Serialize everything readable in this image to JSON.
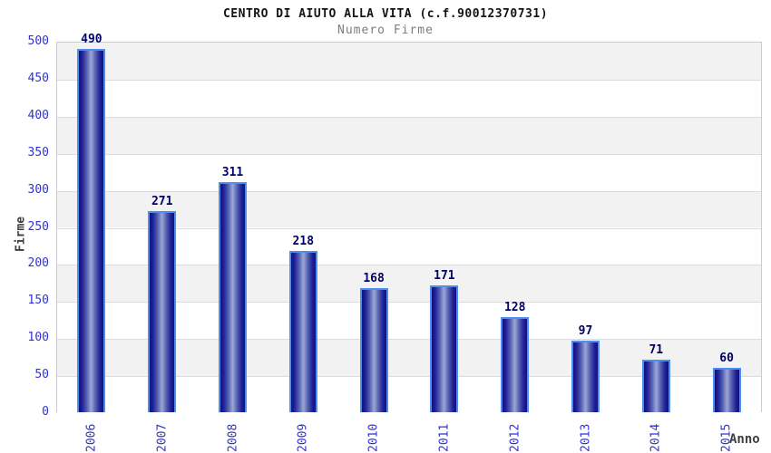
{
  "chart": {
    "title": "CENTRO DI AIUTO ALLA VITA (c.f.90012370731)",
    "subtitle": "Numero Firme",
    "ylabel": "Firme",
    "xlabel": "Anno"
  },
  "chart_data": {
    "type": "bar",
    "title": "CENTRO DI AIUTO ALLA VITA (c.f.90012370731)",
    "subtitle": "Numero Firme",
    "xlabel": "Anno",
    "ylabel": "Firme",
    "categories": [
      "2006",
      "2007",
      "2008",
      "2009",
      "2010",
      "2011",
      "2012",
      "2013",
      "2014",
      "2015"
    ],
    "values": [
      490,
      271,
      311,
      218,
      168,
      171,
      128,
      97,
      71,
      60
    ],
    "ylim": [
      0,
      500
    ],
    "ytick_step": 50,
    "yticks": [
      0,
      50,
      100,
      150,
      200,
      250,
      300,
      350,
      400,
      450,
      500
    ],
    "grid": "horizontal-bands-alternating",
    "legend": "none",
    "colors": {
      "band_gray": "#f2f2f2",
      "band_white": "#ffffff",
      "gridline": "#dcdcdc",
      "plot_border": "#cccccc",
      "bar_border": "#4d8ef0",
      "bar_dark": "#10107a",
      "bar_light": "#9ba8d6",
      "tick_label": "#3232cf",
      "value_label": "#000066",
      "title": "#151515",
      "subtitle": "#7d7d7d",
      "axis_label": "#3f3f3f"
    }
  }
}
